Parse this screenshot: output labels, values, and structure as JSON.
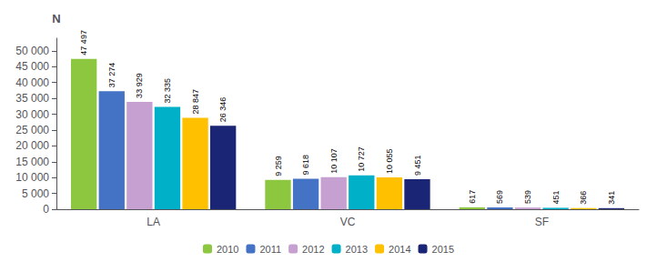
{
  "chart_data": {
    "type": "bar",
    "categories": [
      "LA",
      "VC",
      "SF"
    ],
    "series": [
      {
        "name": "2010",
        "color": "#8dc63f",
        "values": [
          47497,
          9259,
          617
        ],
        "value_labels": [
          "47 497",
          "9 259",
          "617"
        ]
      },
      {
        "name": "2011",
        "color": "#4472c4",
        "values": [
          37274,
          9618,
          569
        ],
        "value_labels": [
          "37 274",
          "9 618",
          "569"
        ]
      },
      {
        "name": "2012",
        "color": "#c6a0d0",
        "values": [
          33929,
          10107,
          539
        ],
        "value_labels": [
          "33 929",
          "10 107",
          "539"
        ]
      },
      {
        "name": "2013",
        "color": "#00b0c8",
        "values": [
          32335,
          10727,
          451
        ],
        "value_labels": [
          "32 335",
          "10 727",
          "451"
        ]
      },
      {
        "name": "2014",
        "color": "#ffc000",
        "values": [
          28847,
          10055,
          366
        ],
        "value_labels": [
          "28 847",
          "10 055",
          "366"
        ]
      },
      {
        "name": "2015",
        "color": "#1a2575",
        "values": [
          26346,
          9451,
          341
        ],
        "value_labels": [
          "26 346",
          "9 451",
          "341"
        ]
      }
    ],
    "ylabel": "N",
    "ylim": [
      0,
      54000
    ],
    "yticks": [
      0,
      {
        "value": 5000,
        "label": "5 000"
      },
      {
        "value": 10000,
        "label": "10 000"
      },
      {
        "value": 15000,
        "label": "15 000"
      },
      {
        "value": 20000,
        "label": "20 000"
      },
      {
        "value": 25000,
        "label": "25 000"
      },
      {
        "value": 30000,
        "label": "30 000"
      },
      {
        "value": 35000,
        "label": "35 000"
      },
      {
        "value": 40000,
        "label": "40 000"
      },
      {
        "value": 45000,
        "label": "45 000"
      },
      {
        "value": 50000,
        "label": "50 000"
      }
    ],
    "grid": false,
    "legend": "bottom",
    "data_labels": true
  }
}
